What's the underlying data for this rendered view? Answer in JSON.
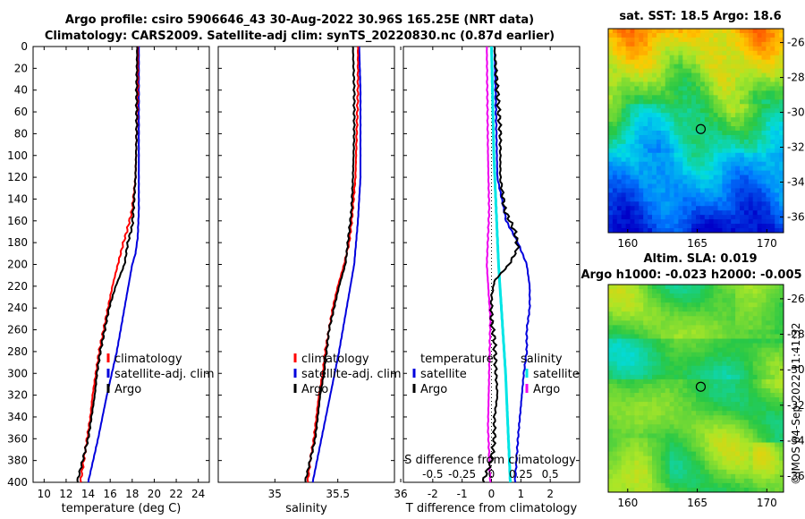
{
  "header": {
    "line1": "Argo profile: csiro 5906646_43 30-Aug-2022 30.96S 165.25E (NRT data)",
    "line2": "Climatology: CARS2009. Satellite-adj clim: synTS_20220830.nc (0.87d earlier)"
  },
  "maps": {
    "sst_title": "sat. SST: 18.5 Argo: 18.6",
    "sla_title_line1": "Altim. SLA: 0.019",
    "sla_title_line2": "Argo h1000: -0.023 h2000: -0.005",
    "lon_ticks": [
      "160",
      "165",
      "170"
    ],
    "lat_ticks": [
      "-26",
      "-28",
      "-30",
      "-32",
      "-34",
      "-36"
    ],
    "float_position": {
      "lon": 165.25,
      "lat": -30.96
    }
  },
  "credit": "©IMOS 04-Sep-2022 11:41:32",
  "colors": {
    "climatology": "#ff0000",
    "satellite": "#0000dd",
    "argo": "#000000",
    "sal_sat": "#00e5e5",
    "sal_argo": "#ee00ee"
  },
  "chart_data": [
    {
      "type": "line",
      "name": "temperature",
      "xlabel": "temperature (deg C)",
      "ylabel": "depth",
      "xlim": [
        9,
        25
      ],
      "ylim": [
        0,
        400
      ],
      "xticks": [
        "10",
        "12",
        "14",
        "16",
        "18",
        "20",
        "22",
        "24"
      ],
      "yticks": [
        "0",
        "20",
        "40",
        "60",
        "80",
        "100",
        "120",
        "140",
        "160",
        "180",
        "200",
        "220",
        "240",
        "260",
        "280",
        "300",
        "320",
        "340",
        "360",
        "380",
        "400"
      ],
      "legend": [
        "climatology",
        "satellite-adj. clim",
        "Argo"
      ],
      "series": [
        {
          "name": "climatology",
          "depth": [
            0,
            40,
            80,
            120,
            150,
            170,
            180,
            200,
            220,
            240,
            260,
            280,
            300,
            320,
            340,
            360,
            380,
            400
          ],
          "values": [
            18.5,
            18.5,
            18.4,
            18.3,
            18.0,
            17.5,
            17.2,
            16.7,
            16.2,
            15.8,
            15.4,
            15.0,
            14.7,
            14.4,
            14.2,
            13.9,
            13.6,
            13.3
          ]
        },
        {
          "name": "satellite-adj. clim",
          "depth": [
            0,
            40,
            80,
            120,
            150,
            175,
            190,
            200,
            240,
            280,
            320,
            360,
            400
          ],
          "values": [
            18.6,
            18.6,
            18.6,
            18.6,
            18.6,
            18.5,
            18.3,
            18.0,
            17.3,
            16.6,
            15.7,
            14.9,
            14.0
          ]
        },
        {
          "name": "Argo",
          "depth": [
            0,
            40,
            80,
            120,
            150,
            165,
            180,
            200,
            220,
            240,
            260,
            280,
            300,
            320,
            340,
            360,
            380,
            400
          ],
          "values": [
            18.45,
            18.4,
            18.4,
            18.3,
            18.1,
            18.0,
            17.6,
            17.3,
            16.5,
            15.9,
            15.5,
            15.1,
            14.8,
            14.6,
            14.3,
            14.0,
            13.5,
            13.0
          ]
        }
      ]
    },
    {
      "type": "line",
      "name": "salinity",
      "xlabel": "salinity",
      "ylabel": "depth",
      "xlim": [
        34.55,
        35.95
      ],
      "ylim": [
        0,
        400
      ],
      "xticks": [
        "35",
        "35.5",
        "36"
      ],
      "legend": [
        "climatology",
        "satellite-adj. clim",
        "Argo"
      ],
      "series": [
        {
          "name": "climatology",
          "depth": [
            0,
            40,
            80,
            120,
            160,
            180,
            200,
            220,
            240,
            260,
            280,
            300,
            320,
            340,
            360,
            380,
            400
          ],
          "values": [
            35.66,
            35.66,
            35.65,
            35.64,
            35.61,
            35.59,
            35.55,
            35.5,
            35.46,
            35.43,
            35.4,
            35.38,
            35.35,
            35.33,
            35.31,
            35.28,
            35.26
          ]
        },
        {
          "name": "satellite-adj. clim",
          "depth": [
            0,
            40,
            80,
            120,
            160,
            200,
            240,
            280,
            320,
            360,
            400
          ],
          "values": [
            35.67,
            35.68,
            35.68,
            35.68,
            35.66,
            35.63,
            35.57,
            35.51,
            35.44,
            35.37,
            35.3
          ]
        },
        {
          "name": "Argo",
          "depth": [
            0,
            40,
            80,
            120,
            150,
            180,
            200,
            220,
            240,
            260,
            280,
            300,
            320,
            340,
            360,
            380,
            400
          ],
          "values": [
            35.62,
            35.63,
            35.63,
            35.62,
            35.61,
            35.58,
            35.56,
            35.51,
            35.47,
            35.43,
            35.41,
            35.39,
            35.36,
            35.34,
            35.32,
            35.28,
            35.24
          ]
        }
      ]
    },
    {
      "type": "line",
      "name": "difference",
      "xlabel": "T difference from climatology",
      "secondary_xlabel": "S difference from climatology",
      "xlim": [
        -3,
        3
      ],
      "ylim": [
        0,
        400
      ],
      "xticks": [
        "-2",
        "-1",
        "0",
        "1",
        "2"
      ],
      "secondary_xticks": [
        "-0.5",
        "-0.25",
        "0",
        "0.25",
        "0.5"
      ],
      "legend_left_title": "temperature",
      "legend_left": [
        "satellite",
        "Argo"
      ],
      "legend_right_title": "salinity",
      "legend_right": [
        "satellite",
        "Argo"
      ],
      "series": [
        {
          "name": "temperature satellite",
          "depth": [
            0,
            60,
            120,
            160,
            180,
            200,
            220,
            240,
            260,
            280,
            300,
            330,
            360,
            400
          ],
          "values": [
            0.1,
            0.15,
            0.2,
            0.5,
            0.9,
            1.2,
            1.3,
            1.3,
            1.2,
            1.2,
            1.1,
            1.0,
            0.9,
            0.8
          ]
        },
        {
          "name": "temperature Argo",
          "depth": [
            0,
            40,
            80,
            120,
            150,
            170,
            185,
            200,
            215,
            230,
            250,
            270,
            300,
            320,
            340,
            360,
            380,
            400
          ],
          "values": [
            0.1,
            0.2,
            0.3,
            0.3,
            0.45,
            0.8,
            0.9,
            0.6,
            0.1,
            0.0,
            0.0,
            0.1,
            0.15,
            0.2,
            0.1,
            0.1,
            0.0,
            -0.3
          ]
        },
        {
          "name": "salinity satellite",
          "depth": [
            0,
            100,
            200,
            300,
            400
          ],
          "values": [
            0.0,
            0.02,
            0.06,
            0.12,
            0.16
          ]
        },
        {
          "name": "salinity Argo",
          "depth": [
            0,
            50,
            100,
            150,
            200,
            250,
            300,
            350,
            400
          ],
          "values": [
            -0.04,
            -0.035,
            -0.03,
            -0.02,
            -0.04,
            -0.01,
            -0.02,
            -0.03,
            -0.01
          ]
        }
      ]
    }
  ]
}
